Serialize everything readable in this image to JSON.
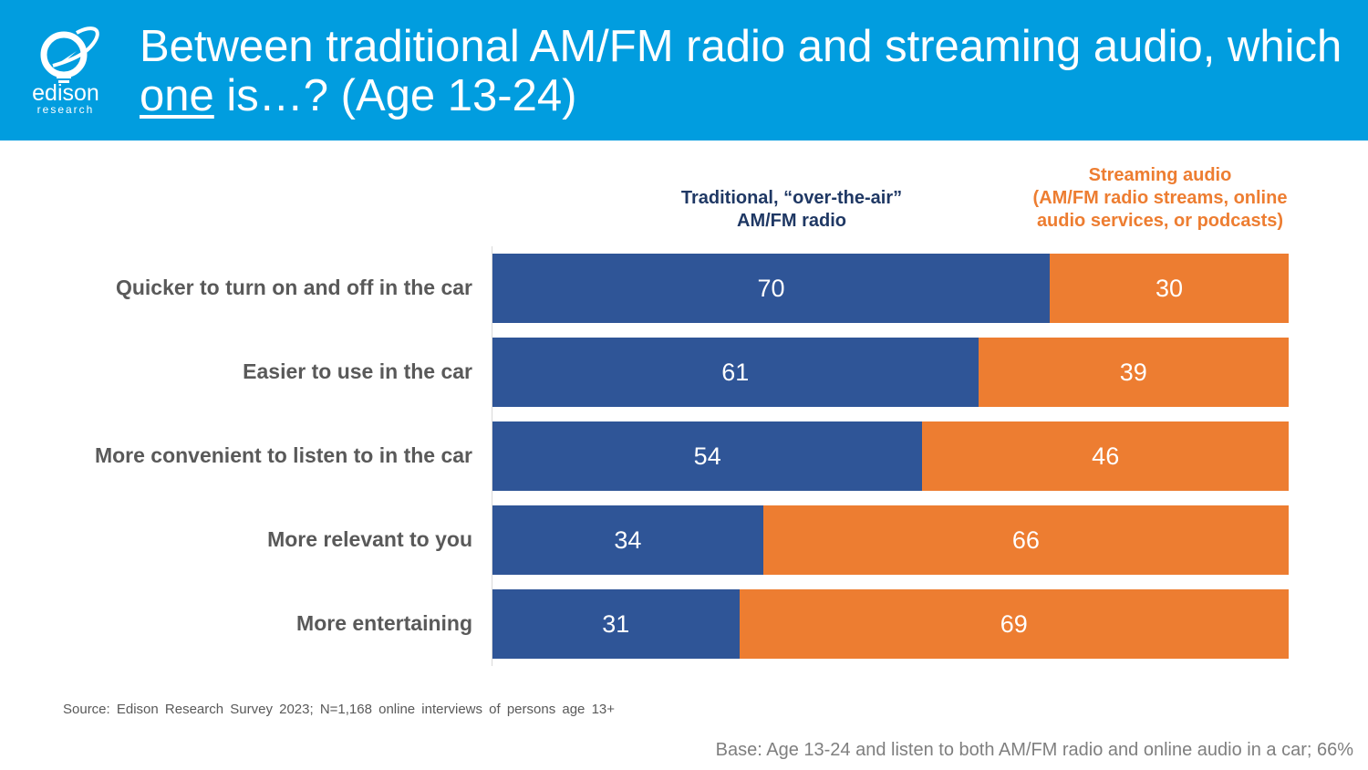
{
  "header": {
    "title_part1": "Between traditional AM/FM radio and streaming audio, which ",
    "title_underlined": "one",
    "title_part2": " is…? (Age 13-24)",
    "logo_text": "edison",
    "logo_subtext": "research",
    "background": "#019ddf"
  },
  "chart_data": {
    "type": "bar",
    "orientation": "horizontal",
    "stacked": "100%",
    "categories": [
      "Quicker to turn on and off in the car",
      "Easier to use in the car",
      "More convenient to listen to in the car",
      "More relevant to you",
      "More entertaining"
    ],
    "series": [
      {
        "name": "Traditional, “over-the-air” AM/FM radio",
        "color": "#2f5597",
        "values": [
          70,
          61,
          54,
          34,
          31
        ]
      },
      {
        "name": "Streaming audio (AM/FM radio streams, online audio services, or podcasts)",
        "color": "#ed7d31",
        "values": [
          30,
          39,
          46,
          66,
          69
        ]
      }
    ],
    "xlim": [
      0,
      100
    ],
    "legend_placement": "top",
    "grid": false
  },
  "legend": {
    "s1_line1": "Traditional, “over-the-air”",
    "s1_line2": "AM/FM radio",
    "s2_line1": "Streaming audio",
    "s2_line2": "(AM/FM radio streams, online",
    "s2_line3": "audio services, or podcasts)"
  },
  "footer": {
    "source": "Source: Edison Research Survey 2023; N=1,168 online interviews of persons age 13+",
    "base": "Base: Age 13-24 and listen to both AM/FM radio and online audio in a car; 66%"
  }
}
